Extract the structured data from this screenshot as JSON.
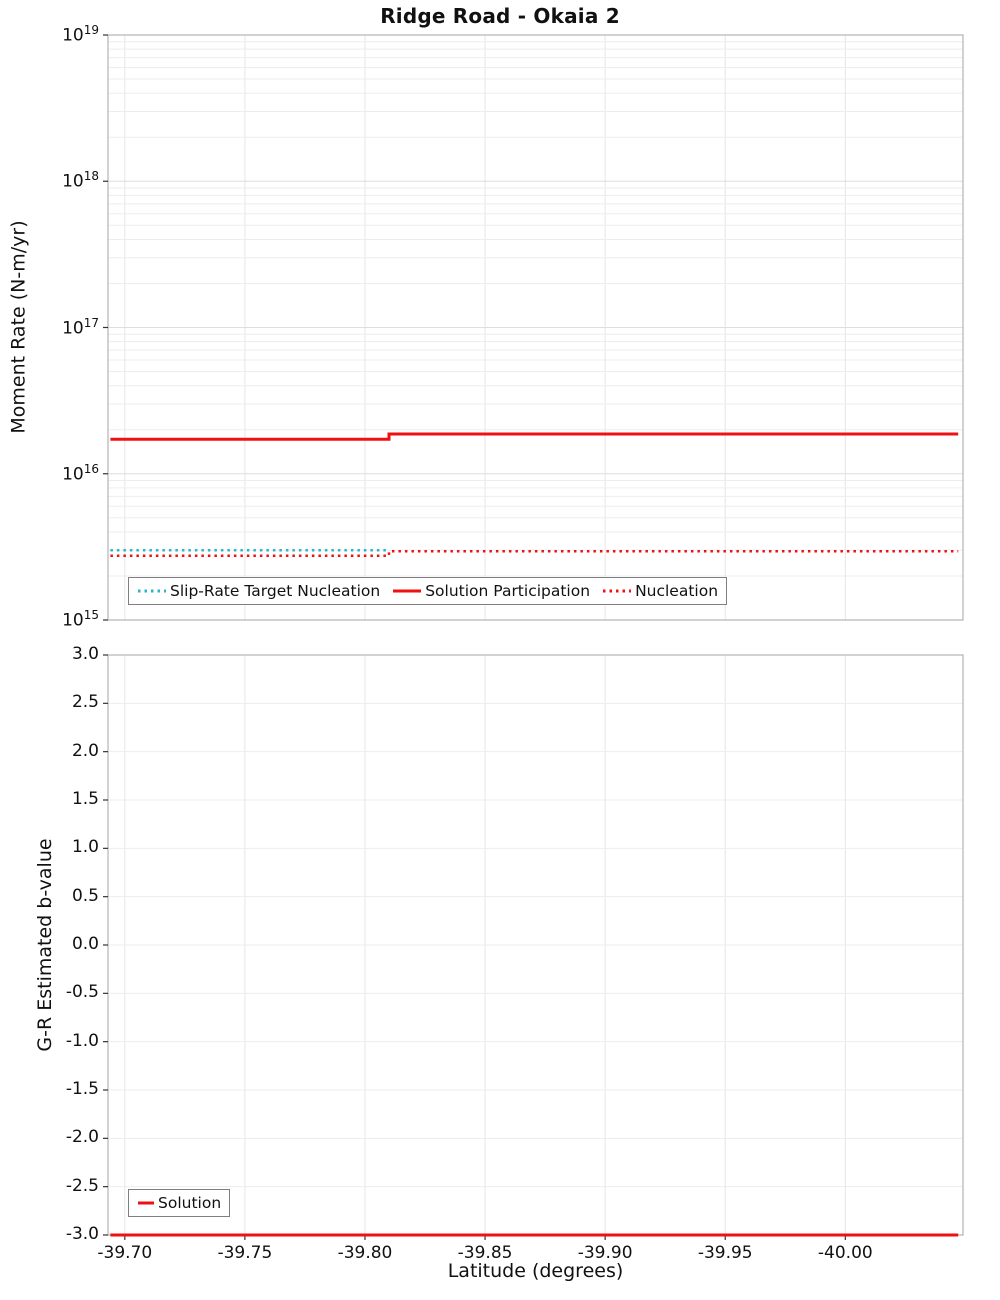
{
  "title": "Ridge Road - Okaia 2",
  "colors": {
    "red": "#ee1111",
    "cyan": "#2bb5c8",
    "grid_minor": "#ededed",
    "grid_major": "#dedede",
    "grid_vertical": "#e6e6e6",
    "frame": "#b3b3b3",
    "tick": "#333333"
  },
  "chart_data": [
    {
      "type": "line",
      "title": "Ridge Road - Okaia 2",
      "xlabel": "Latitude (degrees)",
      "ylabel": "Moment Rate (N-m/yr)",
      "yscale": "log",
      "ylim_exp": [
        15,
        19
      ],
      "y_ticks_exp": [
        19,
        18,
        17,
        16,
        15
      ],
      "xlim": [
        -39.693,
        -40.049
      ],
      "x_ticks": [
        -39.7,
        -39.75,
        -39.8,
        -39.85,
        -39.9,
        -39.95,
        -40.0
      ],
      "legend": [
        {
          "label": "Slip-Rate Target Nucleation",
          "color": "#2bb5c8",
          "dash": "dotted"
        },
        {
          "label": "Solution Participation",
          "color": "#ee1111",
          "dash": "solid"
        },
        {
          "label": "Nucleation",
          "color": "#ee1111",
          "dash": "dotted"
        }
      ],
      "series": [
        {
          "name": "Slip-Rate Target Nucleation",
          "color": "#2bb5c8",
          "style": "dotted",
          "width": 2.5,
          "points": [
            [
              -39.694,
              3000000000000000.0
            ],
            [
              -39.81,
              3000000000000000.0
            ]
          ]
        },
        {
          "name": "Nucleation",
          "color": "#ee1111",
          "style": "dotted",
          "width": 2.5,
          "points": [
            [
              -39.694,
              2750000000000000.0
            ],
            [
              -39.81,
              2750000000000000.0
            ],
            [
              -39.81,
              2950000000000000.0
            ],
            [
              -40.047,
              2950000000000000.0
            ]
          ]
        },
        {
          "name": "Solution Participation",
          "color": "#ee1111",
          "style": "solid",
          "width": 3,
          "points": [
            [
              -39.694,
              1.72e+16
            ],
            [
              -39.81,
              1.72e+16
            ],
            [
              -39.81,
              1.87e+16
            ],
            [
              -40.047,
              1.87e+16
            ]
          ]
        }
      ]
    },
    {
      "type": "line",
      "xlabel": "Latitude (degrees)",
      "ylabel": "G-R Estimated b-value",
      "ylim": [
        -3.0,
        3.0
      ],
      "y_ticks": [
        3.0,
        2.5,
        2.0,
        1.5,
        1.0,
        0.5,
        0.0,
        -0.5,
        -1.0,
        -1.5,
        -2.0,
        -2.5,
        -3.0
      ],
      "xlim": [
        -39.693,
        -40.049
      ],
      "x_ticks": [
        -39.7,
        -39.75,
        -39.8,
        -39.85,
        -39.9,
        -39.95,
        -40.0
      ],
      "legend": [
        {
          "label": "Solution",
          "color": "#ee1111",
          "dash": "solid"
        }
      ],
      "series": [
        {
          "name": "Solution",
          "color": "#ee1111",
          "style": "solid",
          "width": 3,
          "points": [
            [
              -39.694,
              -3.0
            ],
            [
              -40.047,
              -3.0
            ]
          ]
        }
      ]
    }
  ]
}
